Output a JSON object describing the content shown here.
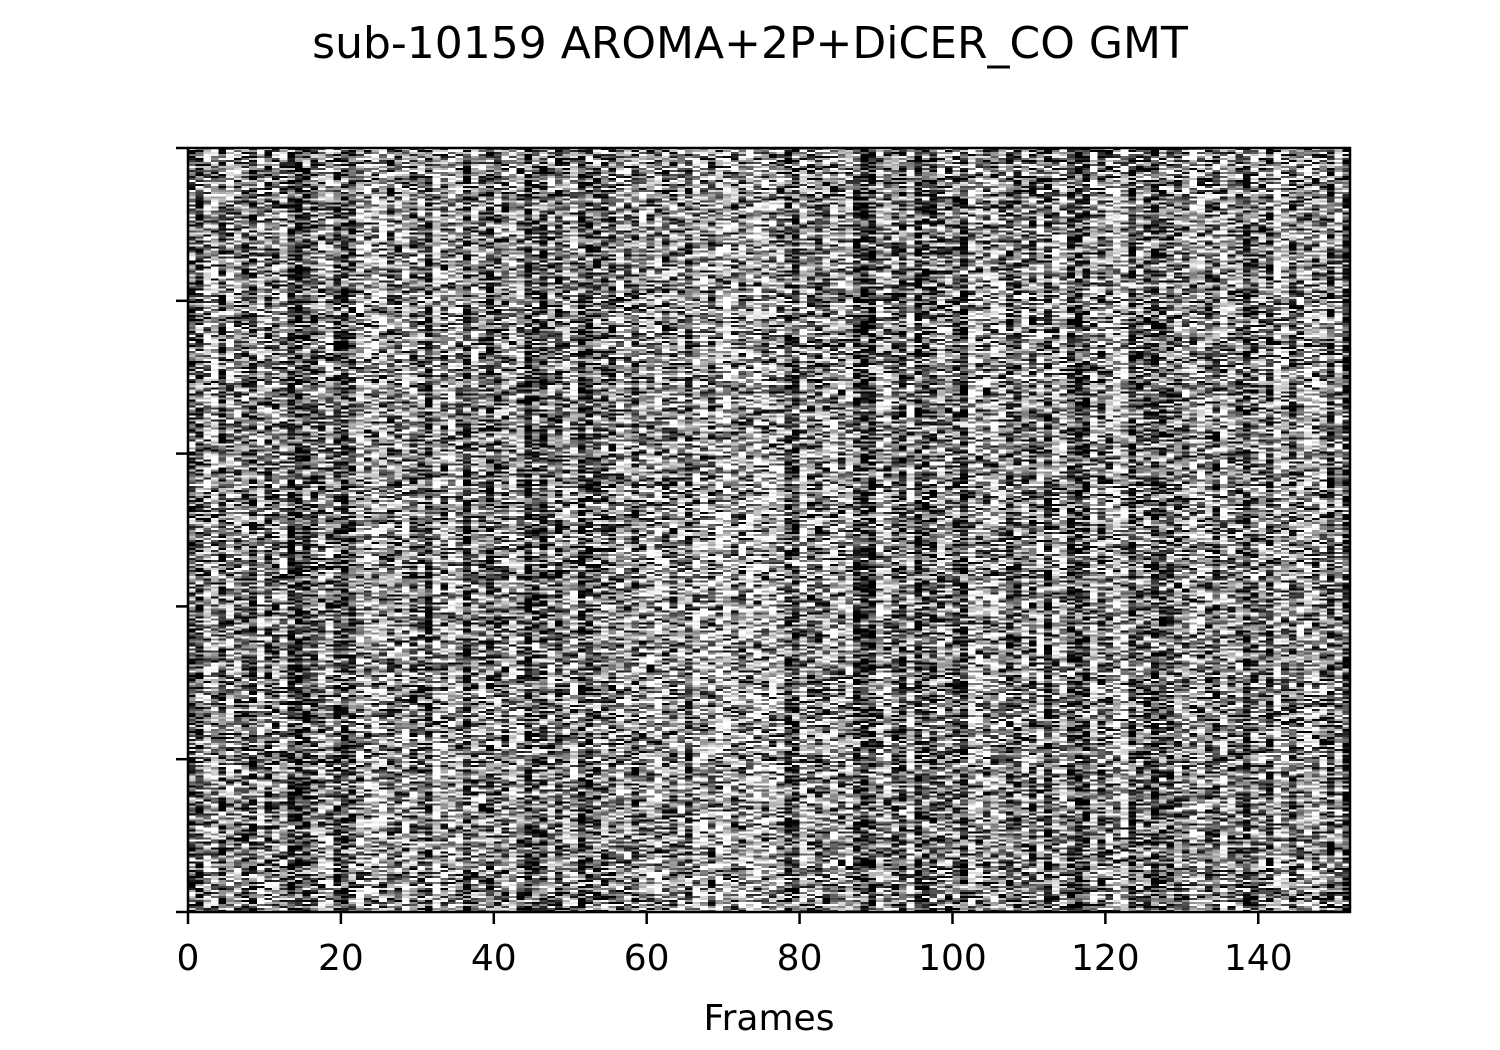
{
  "chart_data": {
    "type": "heatmap",
    "title": "sub-10159 AROMA+2P+DiCER_CO GMT",
    "xlabel": "Frames",
    "ylabel": "",
    "xlim": [
      0,
      152
    ],
    "x_ticks": [
      0,
      20,
      40,
      60,
      80,
      100,
      120,
      140
    ],
    "x_tick_labels": [
      "0",
      "20",
      "40",
      "60",
      "80",
      "100",
      "120",
      "140"
    ],
    "y_tick_count": 6,
    "y_tick_labels_shown": false,
    "colormap": "grayscale",
    "grid": false,
    "legend": "none"
  }
}
